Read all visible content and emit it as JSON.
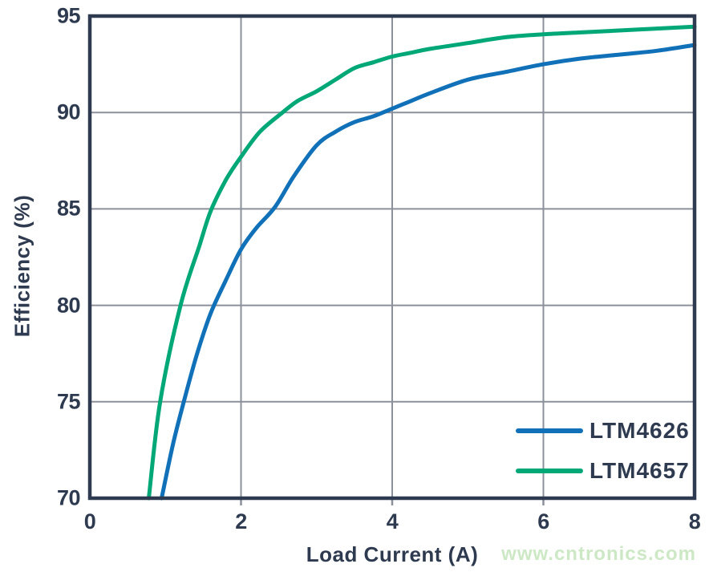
{
  "chart_data": {
    "type": "line",
    "title": "",
    "xlabel": "Load Current (A)",
    "ylabel": "Efficiency (%)",
    "xlim": [
      0,
      8
    ],
    "ylim": [
      70,
      95
    ],
    "xticks": [
      0,
      2,
      4,
      6,
      8
    ],
    "yticks": [
      70,
      75,
      80,
      85,
      90,
      95
    ],
    "grid": true,
    "legend_position": "inside-bottom-right",
    "series": [
      {
        "name": "LTM4626",
        "color": "#1171b8",
        "x": [
          0.95,
          1.1,
          1.25,
          1.42,
          1.6,
          1.8,
          2.0,
          2.2,
          2.45,
          2.7,
          3.0,
          3.25,
          3.5,
          3.75,
          4.0,
          4.25,
          4.5,
          5.0,
          5.5,
          6.0,
          6.5,
          7.0,
          7.5,
          8.0
        ],
        "y": [
          70.0,
          72.8,
          75.1,
          77.5,
          79.6,
          81.3,
          82.9,
          84.0,
          85.1,
          86.7,
          88.3,
          89.0,
          89.5,
          89.8,
          90.2,
          90.6,
          91.0,
          91.7,
          92.1,
          92.5,
          92.8,
          93.0,
          93.2,
          93.5
        ]
      },
      {
        "name": "LTM4657",
        "color": "#00a878",
        "x": [
          0.78,
          0.93,
          1.2,
          1.45,
          1.6,
          1.8,
          2.0,
          2.25,
          2.55,
          2.75,
          3.0,
          3.25,
          3.5,
          3.75,
          4.0,
          4.25,
          4.5,
          5.0,
          5.5,
          6.0,
          6.5,
          7.0,
          7.5,
          8.0
        ],
        "y": [
          70.0,
          75.0,
          80.0,
          83.1,
          84.9,
          86.5,
          87.7,
          89.0,
          90.0,
          90.6,
          91.1,
          91.7,
          92.3,
          92.6,
          92.9,
          93.1,
          93.3,
          93.6,
          93.9,
          94.05,
          94.15,
          94.25,
          94.35,
          94.45
        ]
      }
    ]
  },
  "colors": {
    "axis": "#2e3a4f",
    "grid": "#8b909a",
    "background": "#ffffff"
  },
  "watermark": {
    "text": "www.cntronics.com",
    "color": "#cde8c5"
  }
}
